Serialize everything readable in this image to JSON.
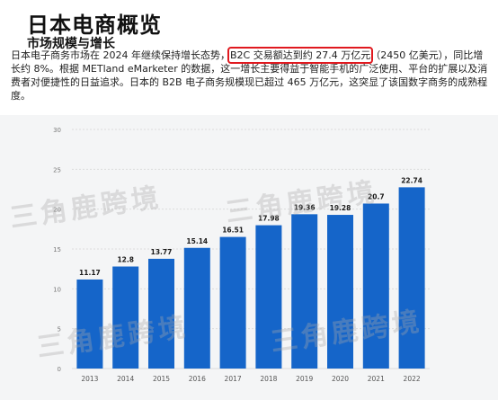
{
  "header": {
    "title": "日本电商概览",
    "subtitle": "市场规模与增长"
  },
  "paragraph": {
    "part1": "日本电子商务市场在 2024 年继续保持增长态势，",
    "highlight": "B2C 交易额达到约 27.4 万亿元",
    "part2": "（2450 亿美元），同比增长约 8%。根据 METland eMarketer 的数据，这一增长主要得益于智能手机的广泛使用、平台的扩展以及消费者对便捷性的日益追求。日本的 B2B 电子商务规模现已超过 465 万亿元，这突显了该国数字商务的成熟程度。"
  },
  "colors": {
    "bar": "#1565c9",
    "highlight_box": "#e0191f",
    "chart_bg": "#f4f5f6",
    "grid": "#dcdcdc"
  },
  "watermark": {
    "text": "三角鹿跨境"
  },
  "chart_data": {
    "type": "bar",
    "categories": [
      "2013",
      "2014",
      "2015",
      "2016",
      "2017",
      "2018",
      "2019",
      "2020",
      "2021",
      "2022"
    ],
    "values": [
      11.17,
      12.8,
      13.77,
      15.14,
      16.51,
      17.98,
      19.36,
      19.28,
      20.7,
      22.74
    ],
    "value_labels": [
      "11.17",
      "12.8",
      "13.77",
      "15.14",
      "16.51",
      "17.98",
      "19.36",
      "19.28",
      "20.7",
      "22.74"
    ],
    "yticks": [
      0,
      5,
      10,
      15,
      20,
      25,
      30
    ],
    "ylim": [
      0,
      30
    ],
    "grid": true,
    "legend": "none"
  }
}
